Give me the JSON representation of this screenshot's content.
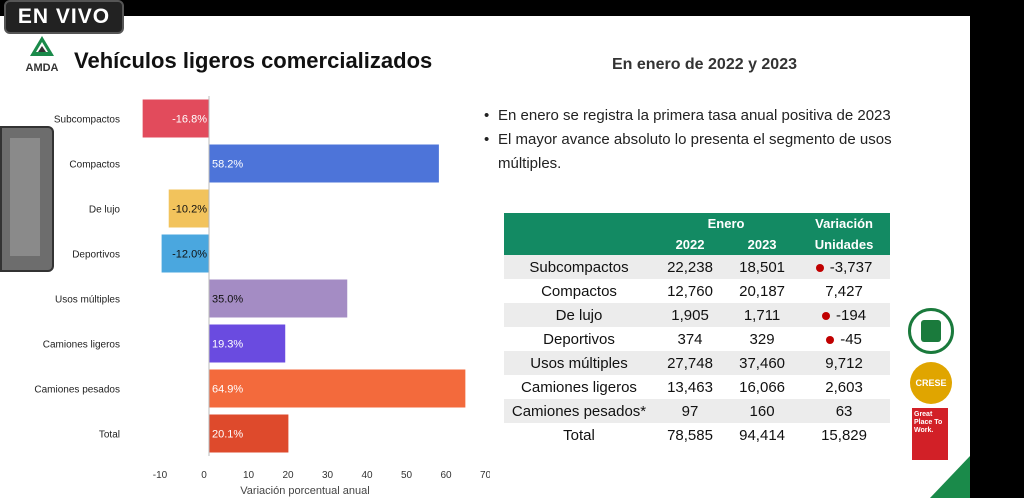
{
  "live_badge": "EN VIVO",
  "logo_text": "AMDA",
  "title": "Vehículos ligeros comercializados",
  "subtitle": "En enero de 2022 y 2023",
  "bullets": [
    "En enero se registra la primera tasa anual positiva de 2023",
    "El mayor avance absoluto lo presenta el segmento de usos múltiples."
  ],
  "table": {
    "group_header": "Enero",
    "col_2022": "2022",
    "col_2023": "2023",
    "variation_header_1": "Variación",
    "variation_header_2": "Unidades",
    "rows": [
      {
        "segment": "Subcompactos",
        "y2022": "22,238",
        "y2023": "18,501",
        "variation": "-3,737",
        "negative": true
      },
      {
        "segment": "Compactos",
        "y2022": "12,760",
        "y2023": "20,187",
        "variation": "7,427",
        "negative": false
      },
      {
        "segment": "De lujo",
        "y2022": "1,905",
        "y2023": "1,711",
        "variation": "-194",
        "negative": true
      },
      {
        "segment": "Deportivos",
        "y2022": "374",
        "y2023": "329",
        "variation": "-45",
        "negative": true
      },
      {
        "segment": "Usos múltiples",
        "y2022": "27,748",
        "y2023": "37,460",
        "variation": "9,712",
        "negative": false
      },
      {
        "segment": "Camiones ligeros",
        "y2022": "13,463",
        "y2023": "16,066",
        "variation": "2,603",
        "negative": false
      },
      {
        "segment": "Camiones pesados*",
        "y2022": "97",
        "y2023": "160",
        "variation": "63",
        "negative": false
      },
      {
        "segment": "Total",
        "y2022": "78,585",
        "y2023": "94,414",
        "variation": "15,829",
        "negative": false
      }
    ]
  },
  "badges": {
    "cert2_text": "CRESE",
    "cert3_text": "Great Place To Work."
  },
  "chart_data": {
    "type": "bar",
    "orientation": "horizontal",
    "categories": [
      "Subcompactos",
      "Compactos",
      "De lujo",
      "Deportivos",
      "Usos múltiples",
      "Camiones ligeros",
      "Camiones pesados",
      "Total"
    ],
    "values": [
      -16.8,
      58.2,
      -10.2,
      -12.0,
      35.0,
      19.3,
      64.9,
      20.1
    ],
    "data_labels": [
      "-16.8%",
      "58.2%",
      "-10.2%",
      "-12.0%",
      "35.0%",
      "19.3%",
      "64.9%",
      "20.1%"
    ],
    "colors": [
      "#e24b5c",
      "#4d74d9",
      "#f2c35c",
      "#4aa7df",
      "#a48cc4",
      "#6a4be0",
      "#f36a3c",
      "#de4a2c"
    ],
    "xlabel": "Variación porcentual anual",
    "xlim": [
      -10,
      70
    ],
    "xticks": [
      "-10",
      "0",
      "10",
      "20",
      "30",
      "40",
      "50",
      "60",
      "70"
    ],
    "grid": false
  }
}
